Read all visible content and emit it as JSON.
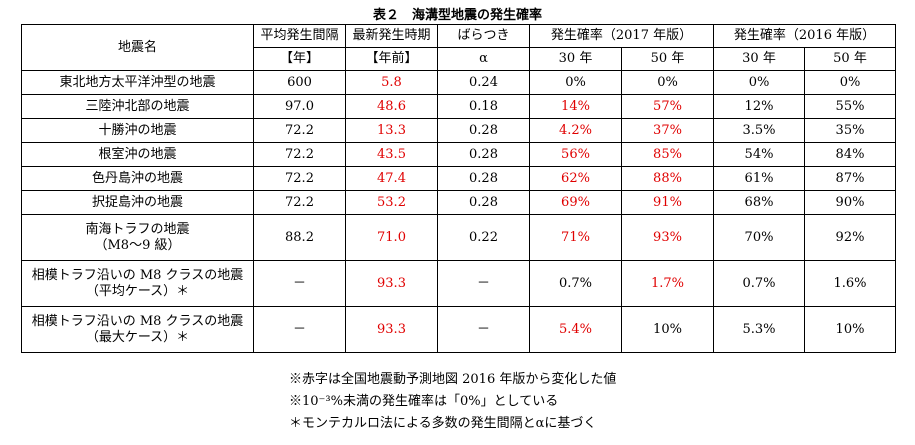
{
  "title": "表２　海溝型地震の発生確率",
  "headers": {
    "name": "地震名",
    "interval_l1": "平均発生間隔",
    "interval_l2": "【年】",
    "latest_l1": "最新発生時期",
    "latest_l2": "【年前】",
    "variance_l1": "ばらつき",
    "variance_l2": "α",
    "prob2017": "発生確率（2017 年版）",
    "prob2016": "発生確率（2016 年版）",
    "y30": "30 年",
    "y50": "50 年"
  },
  "rows": [
    {
      "name": [
        "東北地方太平洋沖型の地震"
      ],
      "interval": "600",
      "latest": "5.8",
      "alpha": "0.24",
      "p17_30": "0%",
      "p17_50": "0%",
      "p16_30": "0%",
      "p16_50": "0%",
      "red": [
        "latest"
      ]
    },
    {
      "name": [
        "三陸沖北部の地震"
      ],
      "interval": "97.0",
      "latest": "48.6",
      "alpha": "0.18",
      "p17_30": "14%",
      "p17_50": "57%",
      "p16_30": "12%",
      "p16_50": "55%",
      "red": [
        "latest",
        "p17_30",
        "p17_50"
      ]
    },
    {
      "name": [
        "十勝沖の地震"
      ],
      "interval": "72.2",
      "latest": "13.3",
      "alpha": "0.28",
      "p17_30": "4.2%",
      "p17_50": "37%",
      "p16_30": "3.5%",
      "p16_50": "35%",
      "red": [
        "latest",
        "p17_30",
        "p17_50"
      ]
    },
    {
      "name": [
        "根室沖の地震"
      ],
      "interval": "72.2",
      "latest": "43.5",
      "alpha": "0.28",
      "p17_30": "56%",
      "p17_50": "85%",
      "p16_30": "54%",
      "p16_50": "84%",
      "red": [
        "latest",
        "p17_30",
        "p17_50"
      ]
    },
    {
      "name": [
        "色丹島沖の地震"
      ],
      "interval": "72.2",
      "latest": "47.4",
      "alpha": "0.28",
      "p17_30": "62%",
      "p17_50": "88%",
      "p16_30": "61%",
      "p16_50": "87%",
      "red": [
        "latest",
        "p17_30",
        "p17_50"
      ]
    },
    {
      "name": [
        "択捉島沖の地震"
      ],
      "interval": "72.2",
      "latest": "53.2",
      "alpha": "0.28",
      "p17_30": "69%",
      "p17_50": "91%",
      "p16_30": "68%",
      "p16_50": "90%",
      "red": [
        "latest",
        "p17_30",
        "p17_50"
      ]
    },
    {
      "name": [
        "南海トラフの地震",
        "（M8〜9 級）"
      ],
      "interval": "88.2",
      "latest": "71.0",
      "alpha": "0.22",
      "p17_30": "71%",
      "p17_50": "93%",
      "p16_30": "70%",
      "p16_50": "92%",
      "red": [
        "latest",
        "p17_30",
        "p17_50"
      ]
    },
    {
      "name": [
        "相模トラフ沿いの M8 クラスの地震",
        "（平均ケース）＊"
      ],
      "interval": "－",
      "latest": "93.3",
      "alpha": "－",
      "p17_30": "0.7%",
      "p17_50": "1.7%",
      "p16_30": "0.7%",
      "p16_50": "1.6%",
      "red": [
        "latest",
        "p17_50"
      ]
    },
    {
      "name": [
        "相模トラフ沿いの M8 クラスの地震",
        "（最大ケース）＊"
      ],
      "interval": "－",
      "latest": "93.3",
      "alpha": "－",
      "p17_30": "5.4%",
      "p17_50": "10%",
      "p16_30": "5.3%",
      "p16_50": "10%",
      "red": [
        "latest",
        "p17_30"
      ]
    }
  ],
  "notes": [
    "※赤字は全国地震動予測地図 2016 年版から変化した値",
    "※10⁻³%未満の発生確率は「0%」としている",
    "＊モンテカルロ法による多数の発生間隔とαに基づく"
  ],
  "colors": {
    "changed": "#e00000",
    "text": "#000000"
  }
}
